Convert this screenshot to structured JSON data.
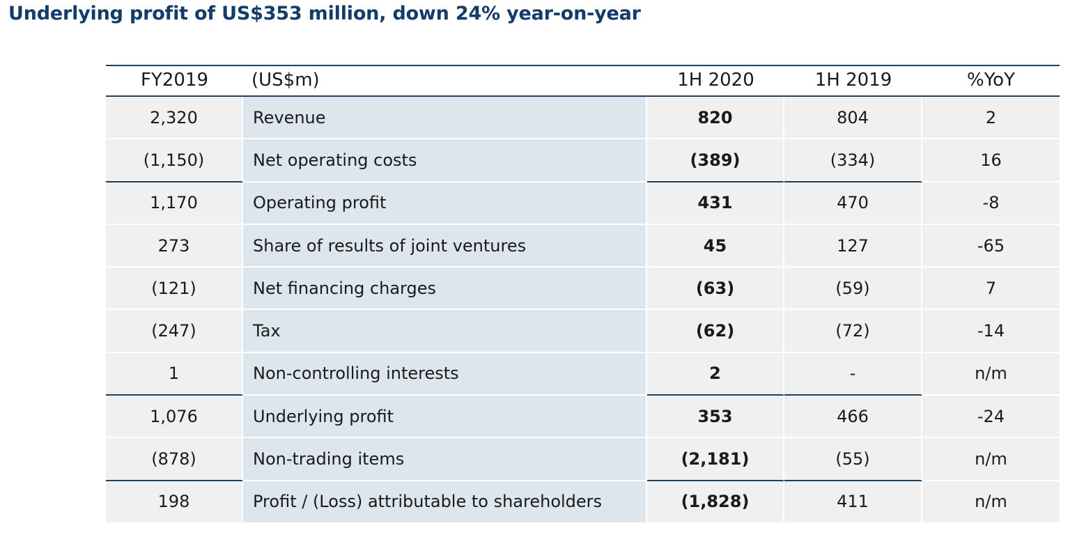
{
  "title": "Underlying profit of US$353 million, down 24% year-on-year",
  "table": {
    "headers": [
      "FY2019",
      "(US$m)",
      "1H 2020",
      "1H 2019",
      "%YoY"
    ],
    "rows": [
      {
        "fy2019": "2,320",
        "label": "Revenue",
        "h2020": "820",
        "h2019": "804",
        "yoy": "2"
      },
      {
        "fy2019": "(1,150)",
        "label": "Net operating costs",
        "h2020": "(389)",
        "h2019": "(334)",
        "yoy": "16"
      },
      {
        "fy2019": "1,170",
        "label": "Operating profit",
        "h2020": "431",
        "h2019": "470",
        "yoy": "-8"
      },
      {
        "fy2019": "273",
        "label": "Share of results of joint ventures",
        "h2020": "45",
        "h2019": "127",
        "yoy": "-65"
      },
      {
        "fy2019": "(121)",
        "label": "Net financing charges",
        "h2020": "(63)",
        "h2019": "(59)",
        "yoy": "7"
      },
      {
        "fy2019": "(247)",
        "label": "Tax",
        "h2020": "(62)",
        "h2019": "(72)",
        "yoy": "-14"
      },
      {
        "fy2019": "1",
        "label": "Non-controlling interests",
        "h2020": "2",
        "h2019": "-",
        "yoy": "n/m"
      },
      {
        "fy2019": "1,076",
        "label": "Underlying profit",
        "h2020": "353",
        "h2019": "466",
        "yoy": "-24"
      },
      {
        "fy2019": "(878)",
        "label": "Non-trading items",
        "h2020": "(2,181)",
        "h2019": "(55)",
        "yoy": "n/m"
      },
      {
        "fy2019": "198",
        "label": "Profit / (Loss) attributable to shareholders",
        "h2020": "(1,828)",
        "h2019": "411",
        "yoy": "n/m"
      }
    ]
  },
  "colors": {
    "title": "#143c6b",
    "rule": "#1d3f66",
    "label_column_bg": "#dde6ed",
    "cell_bg": "#f0f0f0"
  }
}
